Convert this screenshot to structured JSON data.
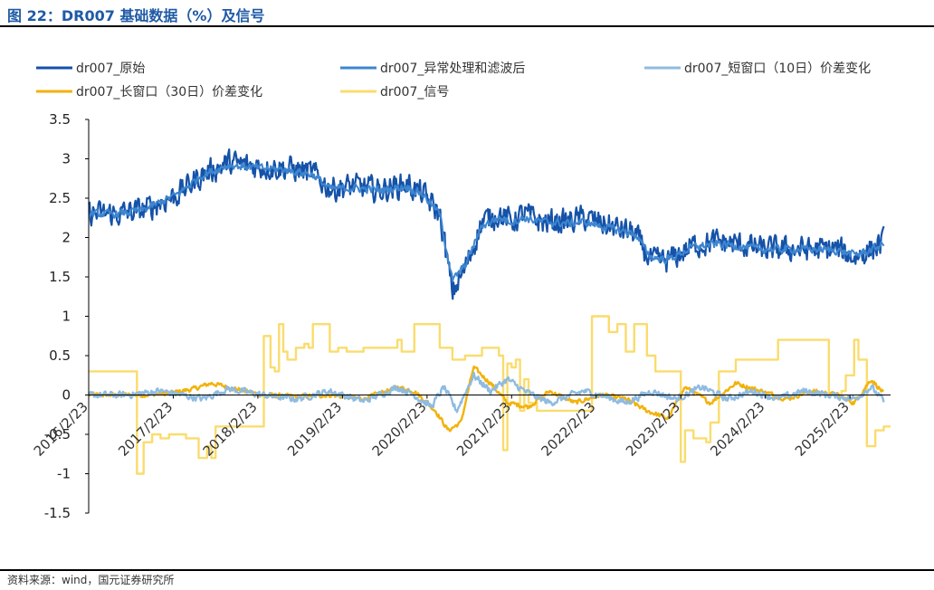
{
  "figure": {
    "title": "图 22：DR007 基础数据（%）及信号",
    "source": "资料来源：wind，国元证券研究所"
  },
  "colors": {
    "raw": "#1552a8",
    "filtered": "#3d86d0",
    "short10": "#8fbbe0",
    "long30": "#f2b20c",
    "signal": "#fadc6e",
    "title": "#1f5aa6"
  },
  "chart_data": {
    "type": "line",
    "title": "",
    "xlabel": "",
    "ylabel": "",
    "ylim": [
      -1.5,
      3.5
    ],
    "yticks": [
      3.5,
      3,
      2.5,
      2,
      1.5,
      1,
      0.5,
      0,
      -0.5,
      -1,
      -1.5
    ],
    "ytick_labels": [
      "3.5",
      "3",
      "2.5",
      "2",
      "1.5",
      "1",
      "0.5",
      "0",
      "-0.5",
      "-1",
      "-1.5"
    ],
    "xlim": [
      2016.15,
      2025.63
    ],
    "xticks": [
      2016.15,
      2017.15,
      2018.15,
      2019.15,
      2020.15,
      2021.15,
      2022.15,
      2023.15,
      2024.15,
      2025.15
    ],
    "xtick_labels": [
      "2016/2/23",
      "2017/2/23",
      "2018/2/23",
      "2019/2/23",
      "2020/2/23",
      "2021/2/23",
      "2022/2/23",
      "2023/2/23",
      "2024/2/23",
      "2025/2/23"
    ],
    "legend_position": "top",
    "series": [
      {
        "name": "dr007_原始",
        "color_key": "raw",
        "x": [
          2016.15,
          2016.5,
          2016.8,
          2017.2,
          2017.5,
          2017.8,
          2018.0,
          2018.2,
          2018.5,
          2018.8,
          2019.0,
          2019.3,
          2019.6,
          2019.9,
          2020.1,
          2020.3,
          2020.45,
          2020.6,
          2020.8,
          2021.0,
          2021.15,
          2021.3,
          2021.5,
          2021.8,
          2022.0,
          2022.3,
          2022.6,
          2022.8,
          2023.0,
          2023.3,
          2023.6,
          2023.9,
          2024.1,
          2024.4,
          2024.7,
          2025.0,
          2025.2,
          2025.4,
          2025.55
        ],
        "y": [
          2.3,
          2.3,
          2.35,
          2.55,
          2.8,
          2.95,
          2.92,
          2.9,
          2.88,
          2.82,
          2.62,
          2.65,
          2.6,
          2.68,
          2.55,
          2.3,
          1.3,
          1.6,
          2.2,
          2.3,
          2.2,
          2.3,
          2.2,
          2.2,
          2.25,
          2.15,
          2.05,
          1.7,
          1.7,
          1.9,
          1.95,
          1.9,
          1.85,
          1.85,
          1.85,
          1.85,
          1.75,
          1.85,
          1.95
        ],
        "noise": 0.22
      },
      {
        "name": "dr007_异常处理和滤波后",
        "color_key": "filtered",
        "x": [
          2016.15,
          2016.5,
          2016.8,
          2017.2,
          2017.5,
          2017.8,
          2018.0,
          2018.2,
          2018.5,
          2018.8,
          2019.0,
          2019.3,
          2019.6,
          2019.9,
          2020.1,
          2020.3,
          2020.45,
          2020.6,
          2020.8,
          2021.0,
          2021.15,
          2021.3,
          2021.5,
          2021.8,
          2022.0,
          2022.3,
          2022.6,
          2022.8,
          2023.0,
          2023.3,
          2023.6,
          2023.9,
          2024.1,
          2024.4,
          2024.7,
          2025.0,
          2025.2,
          2025.4,
          2025.55
        ],
        "y": [
          2.3,
          2.3,
          2.35,
          2.55,
          2.8,
          2.92,
          2.9,
          2.88,
          2.86,
          2.8,
          2.62,
          2.63,
          2.6,
          2.65,
          2.55,
          2.3,
          1.45,
          1.65,
          2.15,
          2.25,
          2.2,
          2.25,
          2.2,
          2.18,
          2.2,
          2.12,
          2.05,
          1.75,
          1.72,
          1.88,
          1.92,
          1.88,
          1.85,
          1.85,
          1.85,
          1.84,
          1.78,
          1.84,
          1.92
        ],
        "noise": 0.07
      },
      {
        "name": "dr007_短窗口（10日）价差变化",
        "color_key": "short10",
        "x": [
          2016.15,
          2016.6,
          2017.0,
          2017.5,
          2017.8,
          2018.2,
          2018.6,
          2019.0,
          2019.4,
          2019.8,
          2020.0,
          2020.2,
          2020.35,
          2020.5,
          2020.7,
          2020.9,
          2021.1,
          2021.3,
          2021.6,
          2022.0,
          2022.2,
          2022.5,
          2022.8,
          2023.1,
          2023.4,
          2023.7,
          2024.0,
          2024.3,
          2024.6,
          2024.9,
          2025.2,
          2025.4,
          2025.55
        ],
        "y": [
          0.0,
          0.0,
          0.05,
          -0.05,
          0.08,
          0.0,
          -0.05,
          0.05,
          -0.08,
          0.1,
          0.0,
          -0.15,
          0.1,
          -0.2,
          0.25,
          0.05,
          0.2,
          0.05,
          -0.1,
          0.05,
          0.0,
          -0.1,
          0.05,
          -0.05,
          0.1,
          -0.05,
          0.05,
          -0.05,
          0.05,
          0.0,
          -0.05,
          0.1,
          -0.08
        ],
        "noise": 0.06
      },
      {
        "name": "dr007_长窗口（30日）价差变化",
        "color_key": "long30",
        "x": [
          2016.15,
          2016.5,
          2016.8,
          2017.1,
          2017.4,
          2017.6,
          2017.8,
          2018.2,
          2018.6,
          2019.0,
          2019.4,
          2019.8,
          2020.0,
          2020.25,
          2020.4,
          2020.55,
          2020.7,
          2020.9,
          2021.1,
          2021.35,
          2021.6,
          2021.9,
          2022.2,
          2022.5,
          2022.75,
          2023.0,
          2023.2,
          2023.5,
          2023.8,
          2024.1,
          2024.4,
          2024.7,
          2025.0,
          2025.2,
          2025.4,
          2025.55
        ],
        "y": [
          0.0,
          0.0,
          0.0,
          0.02,
          0.08,
          0.15,
          0.1,
          0.0,
          -0.02,
          0.0,
          -0.05,
          0.1,
          0.05,
          -0.2,
          -0.45,
          -0.35,
          0.35,
          0.15,
          -0.1,
          -0.15,
          0.05,
          -0.1,
          0.0,
          -0.05,
          -0.2,
          -0.3,
          0.1,
          -0.1,
          0.15,
          0.05,
          -0.05,
          0.05,
          0.0,
          -0.1,
          0.2,
          0.02
        ],
        "noise": 0.04
      },
      {
        "name": "dr007_信号",
        "color_key": "signal",
        "step": true,
        "x": [
          2016.15,
          2016.7,
          2016.72,
          2016.8,
          2016.9,
          2017.0,
          2017.1,
          2017.3,
          2017.45,
          2017.55,
          2017.6,
          2017.65,
          2018.2,
          2018.22,
          2018.3,
          2018.35,
          2018.4,
          2018.45,
          2018.5,
          2018.6,
          2018.7,
          2018.75,
          2018.8,
          2019.0,
          2019.1,
          2019.2,
          2019.4,
          2019.8,
          2019.85,
          2020.0,
          2020.3,
          2020.4,
          2020.45,
          2020.6,
          2020.8,
          2021.0,
          2021.05,
          2021.1,
          2021.15,
          2021.2,
          2021.25,
          2021.3,
          2021.35,
          2021.45,
          2021.6,
          2021.9,
          2022.1,
          2022.3,
          2022.4,
          2022.5,
          2022.6,
          2022.75,
          2022.85,
          2023.0,
          2023.1,
          2023.15,
          2023.2,
          2023.3,
          2023.45,
          2023.5,
          2023.6,
          2023.8,
          2023.9,
          2024.0,
          2024.3,
          2024.5,
          2024.7,
          2024.9,
          2025.0,
          2025.05,
          2025.1,
          2025.2,
          2025.25,
          2025.35,
          2025.45,
          2025.55
        ],
        "y": [
          0.3,
          0.3,
          -1.0,
          -0.6,
          -0.5,
          -0.55,
          -0.5,
          -0.55,
          -0.8,
          -0.65,
          -0.8,
          -0.4,
          -0.4,
          0.75,
          0.35,
          0.3,
          0.9,
          0.55,
          0.45,
          0.6,
          0.65,
          0.6,
          0.9,
          0.55,
          0.6,
          0.55,
          0.6,
          0.7,
          0.55,
          0.9,
          0.6,
          0.6,
          0.45,
          0.5,
          0.6,
          0.5,
          -0.7,
          0.4,
          0.35,
          0.45,
          -0.2,
          0.2,
          -0.1,
          -0.2,
          -0.2,
          -0.2,
          1.0,
          0.8,
          0.9,
          0.55,
          0.9,
          0.5,
          0.3,
          0.3,
          0.3,
          -0.85,
          -0.45,
          -0.55,
          -0.6,
          -0.35,
          0.3,
          0.45,
          0.45,
          0.45,
          0.7,
          0.7,
          0.7,
          0.0,
          0.0,
          0.05,
          0.25,
          0.7,
          0.45,
          -0.65,
          -0.45,
          -0.4
        ],
        "noise": 0.0
      }
    ]
  }
}
